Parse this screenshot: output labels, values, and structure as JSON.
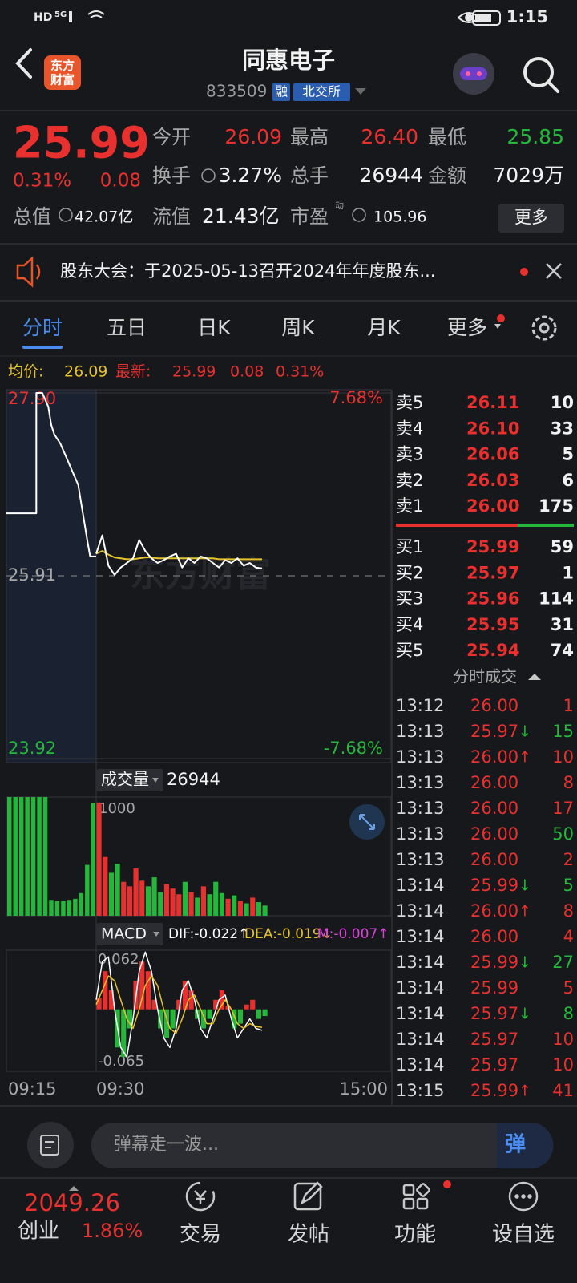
{
  "status_bar": {
    "network": "HD",
    "signal": "5G",
    "time": "1:15"
  },
  "header": {
    "logo": [
      "东方",
      "财富"
    ],
    "name": "同惠电子",
    "code": "833509",
    "tag_margin": "融",
    "tag_exchange": "北交所"
  },
  "quote": {
    "price": "25.99",
    "change_pct": "0.31%",
    "change": "0.08",
    "stats": [
      {
        "label": "今开",
        "value": "26.09",
        "color": "#e8312f"
      },
      {
        "label": "最高",
        "value": "26.40",
        "color": "#e8312f"
      },
      {
        "label": "最低",
        "value": "25.85",
        "color": "#25b73b"
      },
      {
        "label": "换手",
        "value": "3.27%",
        "color": "#f2f2f2"
      },
      {
        "label": "总手",
        "value": "26944",
        "color": "#f2f2f2"
      },
      {
        "label": "金额",
        "value": "7029万",
        "color": "#f2f2f2"
      },
      {
        "label": "总值",
        "value": "42.07亿",
        "color": "#f2f2f2"
      },
      {
        "label": "流值",
        "value": "21.43亿",
        "color": "#f2f2f2"
      },
      {
        "label": "市盈",
        "sup": "动",
        "value": "105.96",
        "color": "#f2f2f2"
      }
    ],
    "more": "更多"
  },
  "notice": {
    "text": "股东大会：于2025-05-13召开2024年年度股东..."
  },
  "tabs": [
    "分时",
    "五日",
    "日K",
    "周K",
    "月K",
    "更多"
  ],
  "chart_info": {
    "avg_label": "均价:",
    "avg": "26.09",
    "latest_label": "最新:",
    "latest": "25.99",
    "change": "0.08",
    "pct": "0.31%"
  },
  "colors": {
    "up": "#e8312f",
    "down": "#25b73b",
    "price_line": "#ffffff",
    "avg_line": "#e6c229",
    "dif": "#ffffff",
    "dea": "#e6c229"
  },
  "price_chart": {
    "ylim": [
      23.92,
      27.9
    ],
    "yticks": [
      {
        "value": 27.9,
        "label": "27.90"
      },
      25.91,
      23.92
    ],
    "right_labels": [
      "7.68%",
      "-7.68%"
    ],
    "watermark": "东方财富",
    "auction": {
      "xlim": [
        0,
        15
      ],
      "x": [
        0,
        5,
        5,
        6,
        7,
        7.5,
        8,
        9,
        10,
        11,
        12,
        12.5,
        13,
        13.5,
        14,
        15
      ],
      "price": [
        26.59,
        26.59,
        27.9,
        27.9,
        27.75,
        27.55,
        27.45,
        27.35,
        27.2,
        27.05,
        26.9,
        26.7,
        26.5,
        26.3,
        26.12,
        26.12
      ]
    },
    "session": {
      "xlim": [
        0,
        240
      ],
      "x": [
        0,
        5,
        10,
        15,
        20,
        25,
        30,
        35,
        40,
        45,
        50,
        55,
        60,
        65,
        70,
        75,
        80,
        85,
        90,
        95,
        100,
        105,
        110,
        115,
        120,
        125,
        130,
        135
      ],
      "price": [
        26.15,
        26.35,
        26.02,
        25.92,
        26.0,
        26.05,
        26.1,
        26.3,
        26.18,
        26.1,
        26.05,
        26.08,
        26.12,
        26.15,
        26.0,
        26.1,
        26.05,
        26.12,
        26.1,
        26.05,
        26.0,
        26.08,
        26.05,
        26.1,
        26.02,
        26.05,
        26.0,
        25.99
      ],
      "avg": [
        26.15,
        26.18,
        26.14,
        26.11,
        26.1,
        26.09,
        26.09,
        26.1,
        26.11,
        26.11,
        26.1,
        26.1,
        26.1,
        26.1,
        26.1,
        26.1,
        26.1,
        26.1,
        26.1,
        26.1,
        26.09,
        26.09,
        26.09,
        26.09,
        26.09,
        26.09,
        26.09,
        26.09
      ]
    }
  },
  "volume": {
    "label": "成交量",
    "total": "26944",
    "ylim": [
      0,
      1050
    ],
    "yticks": [
      1000
    ],
    "auction": {
      "x": [
        0,
        1,
        2,
        3,
        4,
        5,
        6,
        7,
        8,
        9,
        10,
        11,
        12,
        13,
        14
      ],
      "values": [
        1050,
        1050,
        1050,
        1050,
        1050,
        1050,
        1050,
        140,
        130,
        130,
        140,
        150,
        200,
        450,
        1000
      ]
    },
    "session": {
      "x": [
        0,
        5,
        10,
        15,
        20,
        25,
        30,
        35,
        40,
        45,
        50,
        55,
        60,
        65,
        70,
        75,
        80,
        85,
        90,
        95,
        100,
        105,
        110,
        115,
        120,
        125,
        130,
        135
      ],
      "values": [
        1000,
        520,
        380,
        460,
        300,
        260,
        420,
        310,
        260,
        340,
        210,
        280,
        240,
        190,
        300,
        210,
        160,
        260,
        190,
        300,
        200,
        150,
        180,
        130,
        110,
        160,
        120,
        90
      ]
    }
  },
  "macd": {
    "label": "MACD",
    "dif_label": "DIF:-0.022↑",
    "dea_label": "DEA:-0.019↓",
    "m_label": "M:-0.007↑",
    "ylim": [
      -0.065,
      0.062
    ],
    "yticks": [
      0.062,
      -0.065
    ],
    "x": [
      0,
      5,
      10,
      15,
      20,
      25,
      30,
      35,
      40,
      45,
      50,
      55,
      60,
      65,
      70,
      75,
      80,
      85,
      90,
      95,
      100,
      105,
      110,
      115,
      120,
      125,
      130,
      135
    ],
    "hist": [
      0.012,
      0.04,
      0.02,
      -0.04,
      -0.05,
      -0.02,
      0.03,
      0.05,
      0.04,
      0.01,
      -0.02,
      -0.03,
      -0.02,
      0.01,
      0.03,
      0.02,
      -0.01,
      -0.02,
      -0.01,
      0.01,
      0.02,
      0.004,
      -0.02,
      -0.015,
      0.005,
      0.01,
      -0.01,
      -0.007
    ],
    "dif": [
      0.01,
      0.05,
      0.055,
      0.0,
      -0.04,
      -0.05,
      -0.01,
      0.04,
      0.06,
      0.04,
      0.0,
      -0.03,
      -0.04,
      -0.02,
      0.02,
      0.03,
      0.01,
      -0.02,
      -0.03,
      -0.01,
      0.01,
      0.015,
      -0.01,
      -0.03,
      -0.02,
      -0.01,
      -0.02,
      -0.022
    ],
    "dea": [
      0.005,
      0.02,
      0.035,
      0.03,
      0.01,
      -0.01,
      -0.02,
      0.0,
      0.025,
      0.035,
      0.025,
      0.0,
      -0.02,
      -0.025,
      -0.01,
      0.01,
      0.015,
      0.0,
      -0.015,
      -0.015,
      0.0,
      0.01,
      0.0,
      -0.015,
      -0.02,
      -0.015,
      -0.018,
      -0.019
    ]
  },
  "time_axis": [
    "09:15",
    "09:30",
    "15:00"
  ],
  "order_book": {
    "asks": [
      [
        "卖5",
        "26.11",
        "10"
      ],
      [
        "卖4",
        "26.10",
        "33"
      ],
      [
        "卖3",
        "26.06",
        "5"
      ],
      [
        "卖2",
        "26.03",
        "6"
      ],
      [
        "卖1",
        "26.00",
        "175"
      ]
    ],
    "bids": [
      [
        "买1",
        "25.99",
        "59"
      ],
      [
        "买2",
        "25.97",
        "1"
      ],
      [
        "买3",
        "25.96",
        "114"
      ],
      [
        "买4",
        "25.95",
        "31"
      ],
      [
        "买5",
        "25.94",
        "74"
      ]
    ]
  },
  "trades": {
    "title": "分时成交",
    "rows": [
      {
        "time": "13:12",
        "price": "26.00",
        "volume": "1",
        "color": "#e8312f"
      },
      {
        "time": "13:13",
        "price": "25.97",
        "arrow": "↓",
        "volume": "15",
        "color": "#25b73b"
      },
      {
        "time": "13:13",
        "price": "26.00",
        "arrow": "↑",
        "volume": "10",
        "color": "#e8312f"
      },
      {
        "time": "13:13",
        "price": "26.00",
        "volume": "8",
        "color": "#e8312f"
      },
      {
        "time": "13:13",
        "price": "26.00",
        "volume": "17",
        "color": "#e8312f"
      },
      {
        "time": "13:13",
        "price": "26.00",
        "volume": "50",
        "color": "#25b73b"
      },
      {
        "time": "13:13",
        "price": "26.00",
        "volume": "2",
        "color": "#e8312f"
      },
      {
        "time": "13:14",
        "price": "25.99",
        "arrow": "↓",
        "volume": "5",
        "color": "#25b73b"
      },
      {
        "time": "13:14",
        "price": "26.00",
        "arrow": "↑",
        "volume": "8",
        "color": "#e8312f"
      },
      {
        "time": "13:14",
        "price": "26.00",
        "volume": "4",
        "color": "#e8312f"
      },
      {
        "time": "13:14",
        "price": "25.99",
        "arrow": "↓",
        "volume": "27",
        "color": "#25b73b"
      },
      {
        "time": "13:14",
        "price": "25.99",
        "volume": "5",
        "color": "#e8312f"
      },
      {
        "time": "13:14",
        "price": "25.97",
        "arrow": "↓",
        "volume": "8",
        "color": "#25b73b"
      },
      {
        "time": "13:14",
        "price": "25.97",
        "volume": "10",
        "color": "#e8312f"
      },
      {
        "time": "13:14",
        "price": "25.97",
        "volume": "10",
        "color": "#e8312f"
      },
      {
        "time": "13:15",
        "price": "25.99",
        "arrow": "↑",
        "volume": "41",
        "color": "#e8312f"
      }
    ]
  },
  "comment": {
    "placeholder": "弹幕走一波...",
    "button": "弹"
  },
  "bottom_nav": {
    "index_value": "2049.26",
    "index_name": "创业",
    "index_change": "1.86%",
    "items": [
      "交易",
      "发帖",
      "功能",
      "设自选"
    ]
  }
}
